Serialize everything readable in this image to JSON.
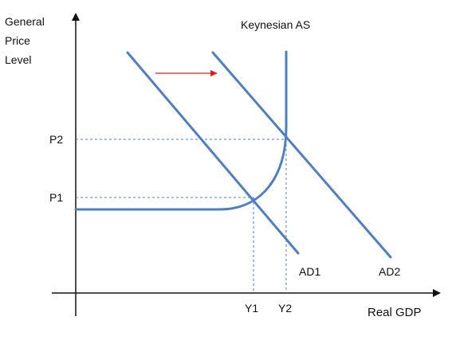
{
  "diagram": {
    "y_axis_label": [
      "General",
      "Price",
      "Level"
    ],
    "x_axis_label": "Real GDP",
    "as_curve_label": "Keynesian AS",
    "demand_labels": {
      "ad1": "AD1",
      "ad2": "AD2"
    },
    "price_labels": {
      "p1": "P1",
      "p2": "P2"
    },
    "output_labels": {
      "y1": "Y1",
      "y2": "Y2"
    },
    "colors": {
      "curve": "#4f7fc0",
      "axis": "#111111",
      "shift_arrow": "#e02020",
      "guide": "#4f7fc0",
      "text": "#111111"
    }
  }
}
